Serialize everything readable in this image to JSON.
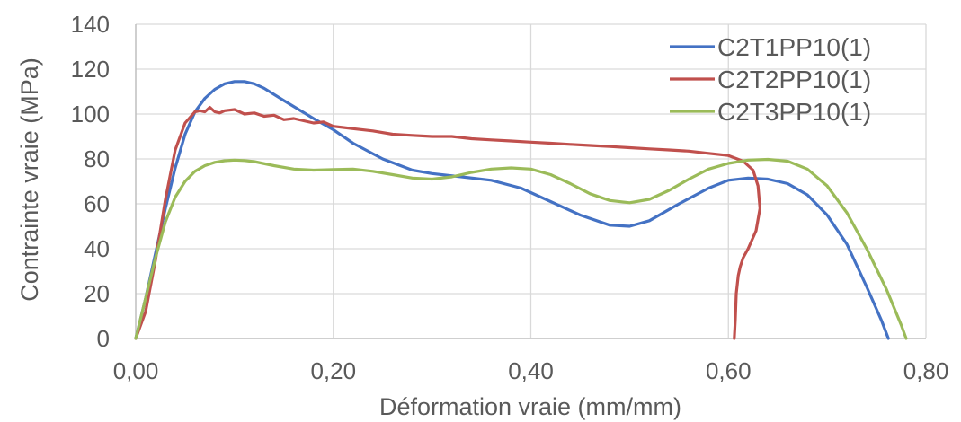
{
  "chart_data": {
    "type": "line",
    "title": "",
    "xlabel": "Déformation vraie (mm/mm)",
    "ylabel": "Contrainte vraie (MPa)",
    "xlim": [
      0,
      0.8
    ],
    "ylim": [
      0,
      140
    ],
    "x_ticks": [
      "0,00",
      "0,20",
      "0,40",
      "0,60",
      "0,80"
    ],
    "y_ticks": [
      "0",
      "20",
      "40",
      "60",
      "80",
      "100",
      "120",
      "140"
    ],
    "grid": true,
    "legend_position": "top-right",
    "series": [
      {
        "name": "C2T1PP10(1)",
        "color": "#4472C4",
        "x": [
          0.0,
          0.01,
          0.02,
          0.03,
          0.04,
          0.05,
          0.06,
          0.07,
          0.08,
          0.09,
          0.1,
          0.11,
          0.12,
          0.13,
          0.15,
          0.18,
          0.2,
          0.22,
          0.25,
          0.28,
          0.3,
          0.33,
          0.36,
          0.39,
          0.42,
          0.45,
          0.48,
          0.5,
          0.52,
          0.55,
          0.58,
          0.6,
          0.62,
          0.64,
          0.66,
          0.68,
          0.7,
          0.72,
          0.74,
          0.755,
          0.762
        ],
        "y": [
          0,
          18,
          38,
          58,
          76,
          91,
          101,
          107,
          111,
          113.5,
          114.5,
          114.5,
          113.5,
          111.5,
          106,
          98,
          93,
          87,
          80,
          75,
          73.5,
          72,
          70.5,
          67,
          61,
          55,
          50.5,
          50,
          52.5,
          60,
          67,
          70.5,
          71.5,
          71,
          69,
          64,
          55,
          42,
          23,
          8,
          0
        ]
      },
      {
        "name": "C2T2PP10(1)",
        "color": "#C0504D",
        "x": [
          0.0,
          0.01,
          0.02,
          0.03,
          0.04,
          0.05,
          0.06,
          0.065,
          0.07,
          0.075,
          0.08,
          0.085,
          0.09,
          0.1,
          0.11,
          0.12,
          0.13,
          0.14,
          0.15,
          0.16,
          0.17,
          0.18,
          0.19,
          0.2,
          0.22,
          0.24,
          0.26,
          0.28,
          0.3,
          0.32,
          0.34,
          0.36,
          0.38,
          0.4,
          0.42,
          0.44,
          0.46,
          0.48,
          0.5,
          0.52,
          0.54,
          0.56,
          0.58,
          0.6,
          0.615,
          0.625,
          0.63,
          0.632,
          0.628,
          0.62,
          0.615,
          0.612,
          0.61,
          0.608,
          0.607,
          0.606
        ],
        "y": [
          0,
          12,
          35,
          62,
          84,
          96,
          101,
          101.5,
          101,
          103,
          101,
          100.5,
          101.5,
          102,
          100,
          100.5,
          99,
          99.5,
          97.5,
          98,
          97,
          96,
          96.5,
          94.5,
          93.5,
          92.5,
          91,
          90.5,
          90,
          90,
          89,
          88.5,
          88,
          87.5,
          87,
          86.5,
          86,
          85.5,
          85,
          84.5,
          84,
          83.5,
          82.5,
          81.5,
          79,
          75,
          68,
          58,
          48,
          40,
          36,
          32,
          28,
          20,
          8,
          0
        ]
      },
      {
        "name": "C2T3PP10(1)",
        "color": "#9BBB59",
        "x": [
          0.0,
          0.01,
          0.02,
          0.03,
          0.04,
          0.05,
          0.06,
          0.07,
          0.08,
          0.09,
          0.1,
          0.11,
          0.12,
          0.14,
          0.16,
          0.18,
          0.2,
          0.22,
          0.24,
          0.26,
          0.28,
          0.3,
          0.32,
          0.34,
          0.36,
          0.38,
          0.4,
          0.42,
          0.44,
          0.46,
          0.48,
          0.5,
          0.52,
          0.54,
          0.56,
          0.58,
          0.6,
          0.62,
          0.64,
          0.66,
          0.68,
          0.7,
          0.72,
          0.74,
          0.76,
          0.775,
          0.78
        ],
        "y": [
          0,
          18,
          36,
          52,
          63,
          70,
          74.5,
          77,
          78.5,
          79.2,
          79.5,
          79.3,
          78.8,
          77,
          75.5,
          75,
          75.3,
          75.5,
          74.5,
          73,
          71.5,
          71,
          72,
          74,
          75.5,
          76,
          75.5,
          73,
          69,
          64.5,
          61.5,
          60.5,
          62,
          66,
          71,
          75.5,
          78,
          79.5,
          79.8,
          79,
          75.5,
          68,
          56,
          40,
          22,
          6,
          0
        ]
      }
    ]
  }
}
